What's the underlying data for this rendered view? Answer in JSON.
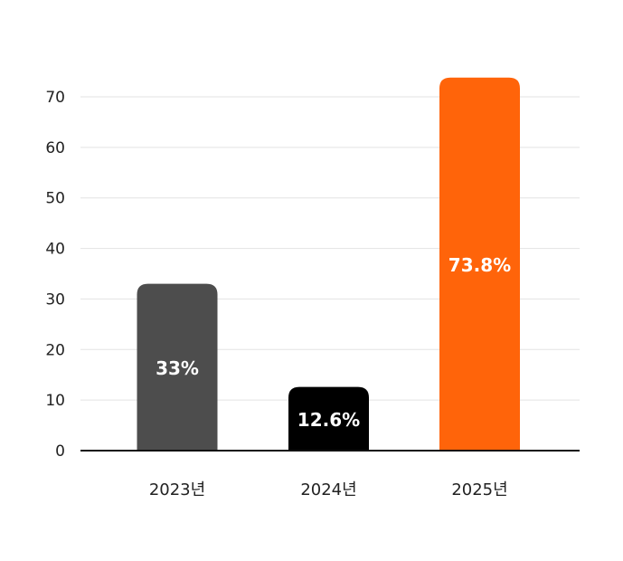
{
  "chart_data": {
    "type": "bar",
    "title": "",
    "xlabel": "",
    "ylabel": "",
    "categories": [
      "2023년",
      "2024년",
      "2025년"
    ],
    "values": [
      33,
      12.6,
      73.8
    ],
    "value_labels": [
      "33%",
      "12.6%",
      "73.8%"
    ],
    "bar_colors": [
      "#4d4d4d",
      "#000000",
      "#ff640a"
    ],
    "ylim": [
      0,
      70
    ],
    "yticks": [
      0,
      10,
      20,
      30,
      40,
      50,
      60,
      70
    ],
    "grid": true,
    "legend": "none"
  },
  "colors": {
    "grid": "#e3e3e3",
    "axis": "#111111",
    "tick_text": "#222222",
    "value_text": "#ffffff"
  }
}
